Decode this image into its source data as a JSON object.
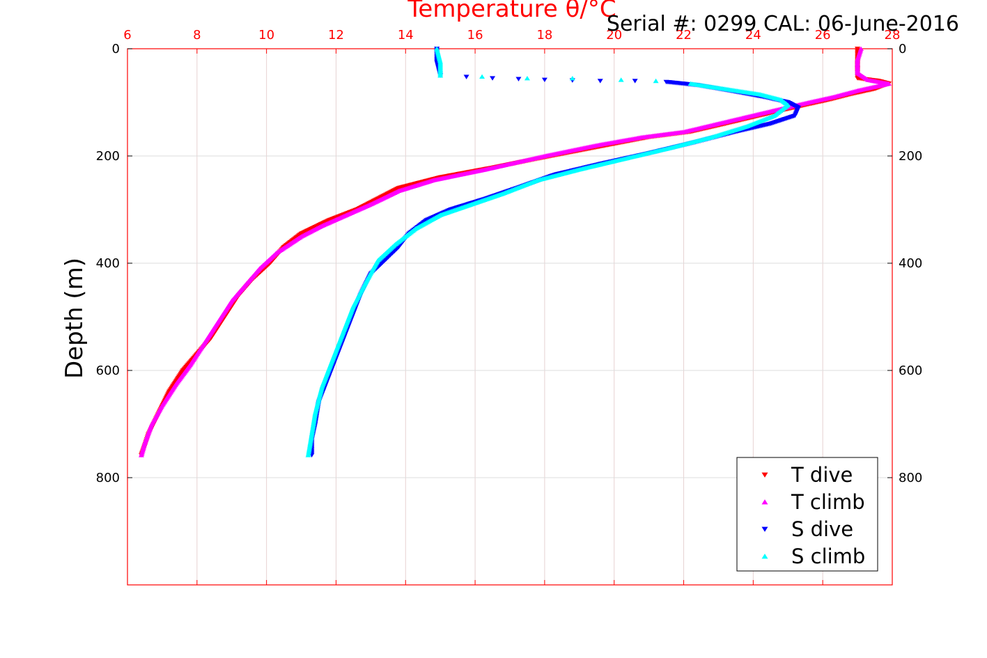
{
  "chart_data": {
    "type": "scatter",
    "title": "Serial #: 0299 CAL: 06-June-2016",
    "xlabel": "Temperature θ/°C",
    "ylabel": "Depth (m)",
    "xlim": [
      6,
      28
    ],
    "ylim": [
      1000,
      0
    ],
    "x_axis_position": "top",
    "x_ticks": [
      6,
      8,
      10,
      12,
      14,
      16,
      18,
      20,
      22,
      24,
      26,
      28
    ],
    "y_ticks": [
      0,
      200,
      400,
      600,
      800
    ],
    "grid": true,
    "legend_placement": "bottom-right",
    "colors": {
      "axis_red": "#ff0000",
      "grid": "#e6d2d2"
    },
    "series": [
      {
        "name": "T dive",
        "marker": "triangle-down",
        "color": "#ff0000",
        "points": [
          [
            27.0,
            0
          ],
          [
            27.0,
            25
          ],
          [
            27.0,
            45
          ],
          [
            27.0,
            55
          ],
          [
            27.6,
            60
          ],
          [
            27.9,
            65
          ],
          [
            27.5,
            75
          ],
          [
            26.8,
            85
          ],
          [
            26.2,
            95
          ],
          [
            25.5,
            105
          ],
          [
            24.5,
            120
          ],
          [
            23.2,
            140
          ],
          [
            22.2,
            155
          ],
          [
            21.0,
            165
          ],
          [
            19.8,
            180
          ],
          [
            18.2,
            200
          ],
          [
            16.5,
            222
          ],
          [
            15.0,
            240
          ],
          [
            13.8,
            260
          ],
          [
            13.2,
            280
          ],
          [
            12.6,
            300
          ],
          [
            11.8,
            320
          ],
          [
            11.0,
            345
          ],
          [
            10.5,
            370
          ],
          [
            10.1,
            400
          ],
          [
            9.6,
            430
          ],
          [
            9.2,
            460
          ],
          [
            8.8,
            500
          ],
          [
            8.4,
            540
          ],
          [
            8.0,
            570
          ],
          [
            7.6,
            600
          ],
          [
            7.2,
            640
          ],
          [
            6.9,
            680
          ],
          [
            6.6,
            720
          ],
          [
            6.5,
            740
          ],
          [
            6.4,
            758
          ]
        ]
      },
      {
        "name": "T climb",
        "marker": "triangle-up",
        "color": "#ff00ff",
        "points": [
          [
            27.1,
            0
          ],
          [
            27.0,
            20
          ],
          [
            27.0,
            45
          ],
          [
            27.3,
            58
          ],
          [
            27.9,
            65
          ],
          [
            27.0,
            78
          ],
          [
            26.3,
            90
          ],
          [
            25.6,
            100
          ],
          [
            24.6,
            115
          ],
          [
            23.3,
            135
          ],
          [
            22.0,
            155
          ],
          [
            20.8,
            165
          ],
          [
            19.5,
            180
          ],
          [
            18.0,
            200
          ],
          [
            16.3,
            225
          ],
          [
            14.8,
            245
          ],
          [
            13.8,
            265
          ],
          [
            13.0,
            290
          ],
          [
            12.3,
            310
          ],
          [
            11.6,
            330
          ],
          [
            11.0,
            350
          ],
          [
            10.3,
            380
          ],
          [
            9.8,
            410
          ],
          [
            9.4,
            440
          ],
          [
            9.0,
            470
          ],
          [
            8.6,
            510
          ],
          [
            8.2,
            550
          ],
          [
            7.8,
            590
          ],
          [
            7.4,
            625
          ],
          [
            7.0,
            665
          ],
          [
            6.7,
            700
          ],
          [
            6.5,
            735
          ],
          [
            6.4,
            758
          ]
        ]
      },
      {
        "name": "S dive",
        "marker": "triangle-down",
        "color": "#0000ff",
        "points": [
          [
            14.9,
            0
          ],
          [
            14.9,
            25
          ],
          [
            15.0,
            50
          ],
          [
            16.5,
            55
          ],
          [
            18.0,
            58
          ],
          [
            19.6,
            60
          ],
          [
            20.6,
            60
          ],
          [
            21.5,
            62
          ],
          [
            22.4,
            68
          ],
          [
            23.3,
            78
          ],
          [
            24.3,
            90
          ],
          [
            25.0,
            100
          ],
          [
            25.3,
            110
          ],
          [
            25.2,
            125
          ],
          [
            24.5,
            140
          ],
          [
            23.5,
            155
          ],
          [
            22.3,
            175
          ],
          [
            21.0,
            195
          ],
          [
            19.6,
            215
          ],
          [
            18.3,
            235
          ],
          [
            17.2,
            260
          ],
          [
            16.3,
            280
          ],
          [
            15.3,
            300
          ],
          [
            14.6,
            320
          ],
          [
            14.1,
            345
          ],
          [
            13.8,
            370
          ],
          [
            13.4,
            395
          ],
          [
            13.0,
            420
          ],
          [
            12.7,
            460
          ],
          [
            12.4,
            510
          ],
          [
            12.1,
            560
          ],
          [
            11.8,
            610
          ],
          [
            11.5,
            660
          ],
          [
            11.4,
            700
          ],
          [
            11.3,
            730
          ],
          [
            11.3,
            758
          ]
        ]
      },
      {
        "name": "S climb",
        "marker": "triangle-up",
        "color": "#00ffff",
        "points": [
          [
            14.9,
            0
          ],
          [
            15.0,
            25
          ],
          [
            15.0,
            50
          ],
          [
            16.2,
            52
          ],
          [
            17.5,
            55
          ],
          [
            18.8,
            55
          ],
          [
            20.2,
            58
          ],
          [
            21.2,
            60
          ],
          [
            22.2,
            65
          ],
          [
            23.2,
            75
          ],
          [
            24.2,
            85
          ],
          [
            24.8,
            95
          ],
          [
            25.0,
            105
          ],
          [
            24.6,
            125
          ],
          [
            23.8,
            145
          ],
          [
            22.8,
            165
          ],
          [
            21.6,
            185
          ],
          [
            20.3,
            205
          ],
          [
            19.0,
            225
          ],
          [
            17.8,
            245
          ],
          [
            16.8,
            270
          ],
          [
            15.9,
            290
          ],
          [
            15.0,
            310
          ],
          [
            14.3,
            335
          ],
          [
            13.7,
            365
          ],
          [
            13.2,
            395
          ],
          [
            12.9,
            430
          ],
          [
            12.5,
            480
          ],
          [
            12.2,
            530
          ],
          [
            11.9,
            580
          ],
          [
            11.6,
            630
          ],
          [
            11.4,
            680
          ],
          [
            11.3,
            720
          ],
          [
            11.2,
            758
          ]
        ]
      }
    ]
  }
}
